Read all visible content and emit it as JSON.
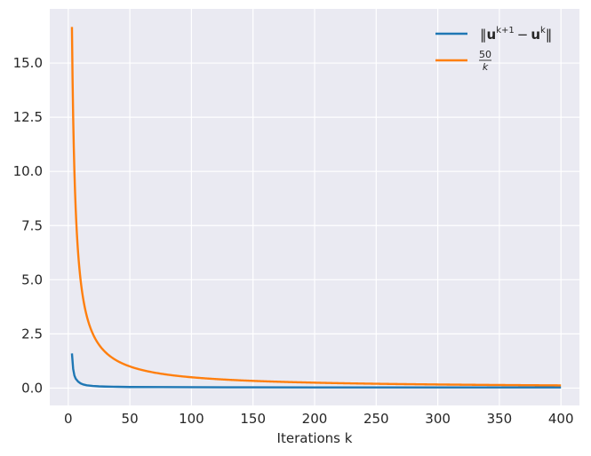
{
  "chart_data": {
    "type": "line",
    "xlabel": "Iterations k",
    "ylabel": "",
    "xlim": [
      -15,
      415
    ],
    "ylim": [
      -0.8,
      17.5
    ],
    "xticks": [
      0,
      50,
      100,
      150,
      200,
      250,
      300,
      350,
      400
    ],
    "xtick_labels": [
      "0",
      "50",
      "100",
      "150",
      "200",
      "250",
      "300",
      "350",
      "400"
    ],
    "yticks": [
      0.0,
      2.5,
      5.0,
      7.5,
      10.0,
      12.5,
      15.0
    ],
    "ytick_labels": [
      "0.0",
      "2.5",
      "5.0",
      "7.5",
      "10.0",
      "12.5",
      "15.0"
    ],
    "grid": true,
    "legend_position": "top-right",
    "series": [
      {
        "name": "‖u^{k+1} − u^k‖",
        "legend": {
          "base1": "‖",
          "bold1": "u",
          "sup1": "k+1",
          "mid": "−",
          "bold2": "u",
          "sup2": "k",
          "end": "‖"
        },
        "color": "#1f77b4",
        "x": [
          3,
          4,
          5,
          6,
          8,
          10,
          12,
          15,
          20,
          25,
          30,
          40,
          50,
          75,
          100,
          150,
          200,
          250,
          300,
          350,
          400
        ],
        "y": [
          1.6,
          0.88,
          0.58,
          0.44,
          0.3,
          0.22,
          0.17,
          0.13,
          0.1,
          0.08,
          0.07,
          0.06,
          0.05,
          0.045,
          0.04,
          0.035,
          0.03,
          0.03,
          0.03,
          0.03,
          0.03
        ]
      },
      {
        "name": "50/k",
        "legend": {
          "num": "50",
          "den": "k"
        },
        "color": "#ff7f0e",
        "formula": "50/k",
        "x_start": 3,
        "x_end": 400
      }
    ]
  }
}
